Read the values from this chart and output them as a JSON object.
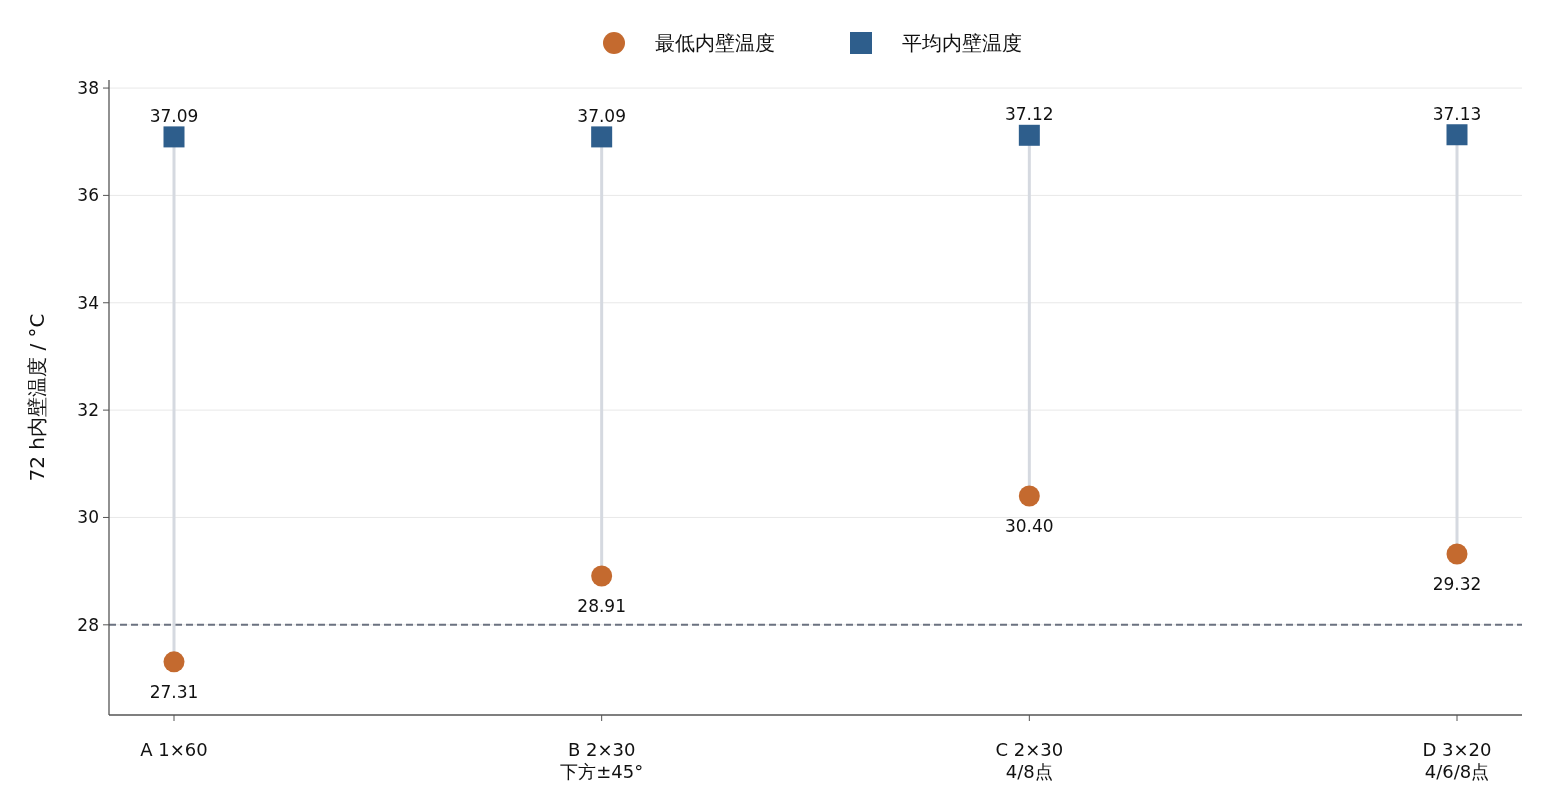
{
  "chart_data": {
    "type": "scatter",
    "ylabel": "72 h内壁温度 / °C",
    "categories": [
      "A  1×60",
      "B  2×30\n下方±45°",
      "C  2×30\n4/8点",
      "D  3×20\n4/6/8点"
    ],
    "series": [
      {
        "name": "最低内壁温度",
        "color": "#c46a2f",
        "marker": "circle",
        "values": [
          27.31,
          28.91,
          30.4,
          29.32
        ],
        "value_labels": [
          "27.31",
          "28.91",
          "30.40",
          "29.32"
        ]
      },
      {
        "name": "平均内壁温度",
        "color": "#2e5e8c",
        "marker": "square",
        "values": [
          37.09,
          37.09,
          37.12,
          37.13
        ],
        "value_labels": [
          "37.09",
          "37.09",
          "37.12",
          "37.13"
        ]
      }
    ],
    "ref_lines": [
      {
        "axis": "y",
        "value": 28,
        "color": "#6b7280",
        "line_style": "dashed"
      }
    ],
    "ylim": [
      26.32,
      38.15
    ],
    "yticks": [
      28,
      30,
      32,
      34,
      36,
      38
    ],
    "grid": "y",
    "legend": "top"
  }
}
